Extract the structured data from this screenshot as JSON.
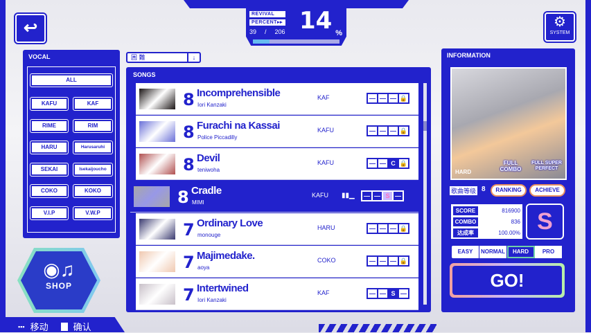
{
  "header": {
    "back_icon": "back-arrow-icon",
    "revival_label": "REVIVAL",
    "percent_label": "PERCENT▸▸",
    "progress_current": "39",
    "progress_sep": "/",
    "progress_total": "206",
    "percent_value": "14",
    "percent_sign": "%",
    "progress_fraction": 0.19,
    "system_label": "SYSTEM",
    "system_icon": "gear-icon"
  },
  "vocal": {
    "title": "VOCAL",
    "all": "ALL",
    "items": [
      "KAFU",
      "KAF",
      "RIME",
      "RIM",
      "HARU",
      "Harusaruhi",
      "SEKAI",
      "Isekaijoucho",
      "COKO",
      "KOKO",
      "V.I.P",
      "V.W.P"
    ]
  },
  "shop": {
    "label": "SHOP",
    "icon": "music-disc-icon"
  },
  "hints": {
    "move": "移动",
    "confirm": "确认"
  },
  "dropdown": {
    "value": "困 難",
    "icon": "arrow-down-icon"
  },
  "songs": {
    "title": "SONGS",
    "rows": [
      {
        "level": "8",
        "title": "Incomprehensible",
        "artist": "Iori Kanzaki",
        "vocal": "KAF",
        "grades": [
          "—",
          "—",
          "—",
          "🔒"
        ],
        "filled": -1,
        "thumb": "#1a1414"
      },
      {
        "level": "8",
        "title": "Furachi na Kassai",
        "artist": "Police Piccadilly",
        "vocal": "KAFU",
        "grades": [
          "—",
          "—",
          "—",
          "🔒"
        ],
        "filled": -1,
        "thumb": "#6a70d8"
      },
      {
        "level": "8",
        "title": "Devil",
        "artist": "teniwoha",
        "vocal": "KAFU",
        "grades": [
          "—",
          "—",
          "C",
          "🔒"
        ],
        "filled": 2,
        "thumb": "#b05050"
      },
      {
        "level": "8",
        "title": "Cradle",
        "artist": "MIMI",
        "vocal": "KAFU",
        "grades": [
          "—",
          "—",
          "S",
          "—"
        ],
        "filled": 2,
        "thumb": "#a8a8a8",
        "selected": true
      },
      {
        "level": "7",
        "title": "Ordinary Love",
        "artist": "monouge",
        "vocal": "HARU",
        "grades": [
          "—",
          "—",
          "—",
          "🔒"
        ],
        "filled": -1,
        "thumb": "#3a3a70"
      },
      {
        "level": "7",
        "title": "Majimedake.",
        "artist": "aoya",
        "vocal": "COKO",
        "grades": [
          "—",
          "—",
          "—",
          "🔒"
        ],
        "filled": -1,
        "thumb": "#f0c8b0"
      },
      {
        "level": "7",
        "title": "Intertwined",
        "artist": "Iori Kanzaki",
        "vocal": "KAF",
        "grades": [
          "—",
          "—",
          "S",
          "—"
        ],
        "filled": 2,
        "thumb": "#c8c0c8"
      }
    ]
  },
  "info": {
    "title": "INFORMATION",
    "difficulty_badge": "HARD",
    "full_combo": "FULL COMBO",
    "full_perfect": "FULL SUPER PERFECT",
    "level_label": "歌曲等级",
    "level_value": "8",
    "ranking": "RANKING",
    "achieve": "ACHIEVE",
    "score_label": "SCORE",
    "score": "816900",
    "combo_label": "COMBO",
    "combo": "836",
    "rate_label": "达成率",
    "rate": "100.00%",
    "rank": "S",
    "difficulties": [
      "EASY",
      "NORMAL",
      "HARD",
      "PRO"
    ],
    "selected_difficulty": "HARD",
    "go": "GO!"
  },
  "colors": {
    "primary": "#2222cc",
    "accent": "#6fd0a8"
  }
}
